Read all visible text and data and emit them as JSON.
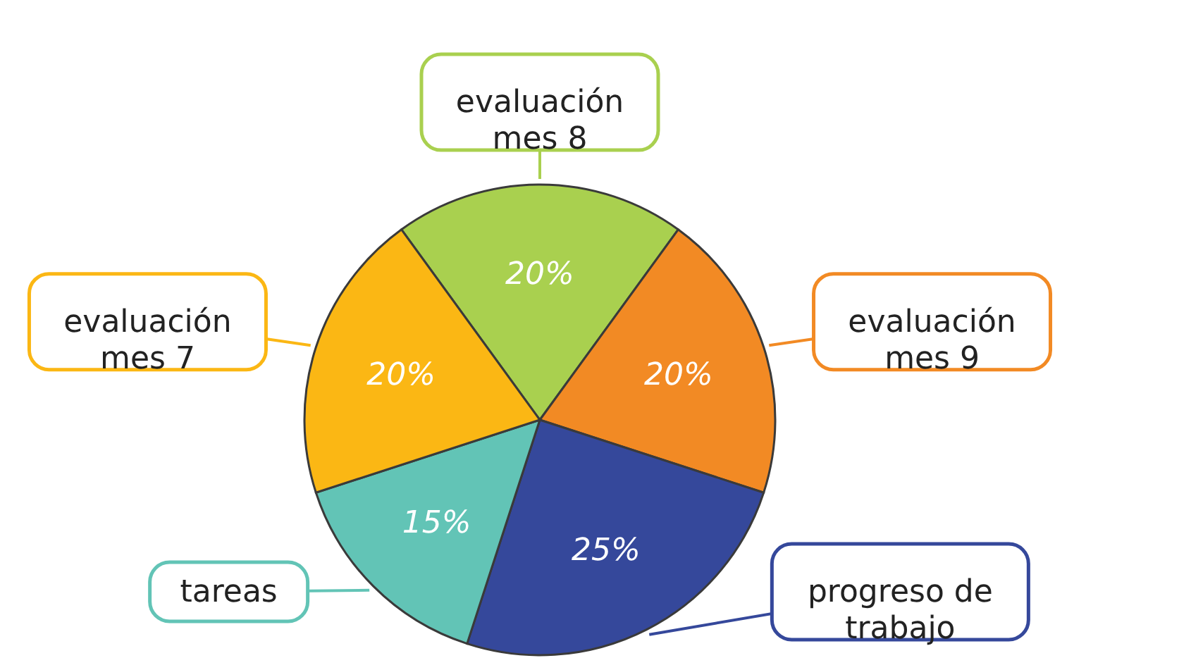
{
  "chart_data": {
    "type": "pie",
    "categories": [
      "evaluación mes 8",
      "evaluación mes 9",
      "progreso de trabajo",
      "tareas",
      "evaluación mes 7"
    ],
    "values": [
      20,
      20,
      25,
      15,
      20
    ],
    "colors": [
      "#a9d04f",
      "#f28a24",
      "#35489b",
      "#62c4b6",
      "#fbb714"
    ],
    "value_labels": [
      "20%",
      "20%",
      "25%",
      "15%",
      "20%"
    ]
  }
}
